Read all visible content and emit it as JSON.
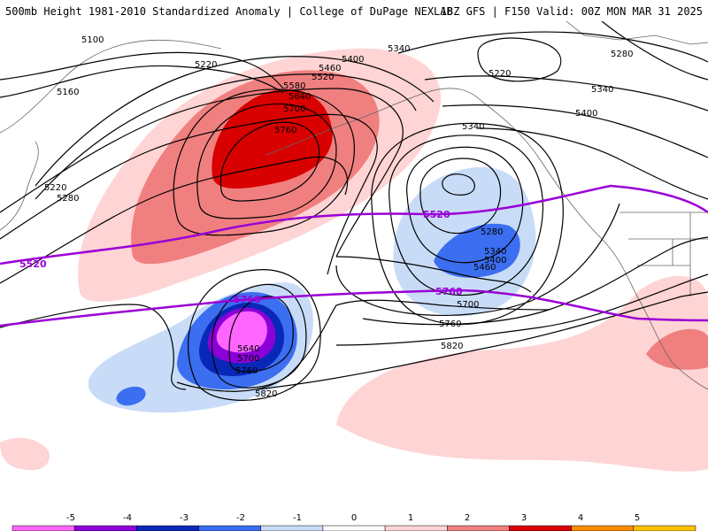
{
  "header": {
    "title_left": "500mb Height 1981-2010 Standardized Anomaly | College of DuPage NEXLAB",
    "title_right": "18Z GFS | F150 Valid: 00Z MON MAR 31 2025"
  },
  "contour_labels": [
    "5100",
    "5160",
    "5220",
    "5280",
    "5340",
    "5400",
    "5460",
    "5520",
    "5580",
    "5640",
    "5700",
    "5760",
    "5820"
  ],
  "purple_labels": [
    "5520",
    "5760"
  ],
  "colorbar": {
    "ticks": [
      "-5",
      "-4",
      "-3",
      "-2",
      "-1",
      "0",
      "1",
      "2",
      "3",
      "4",
      "5"
    ],
    "colors": [
      "#ff66ff",
      "#8b00d8",
      "#0a28b8",
      "#3b6ef0",
      "#c8dcf8",
      "#ffffff",
      "#ffd4d4",
      "#f08080",
      "#d80000",
      "#ff8a00",
      "#ffc000"
    ]
  }
}
